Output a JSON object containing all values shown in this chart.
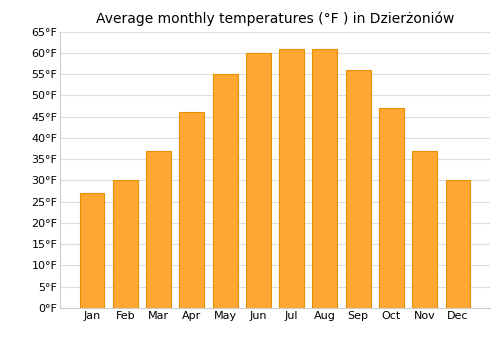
{
  "title": "Average monthly temperatures (°F ) in Dzierżoniów",
  "months": [
    "Jan",
    "Feb",
    "Mar",
    "Apr",
    "May",
    "Jun",
    "Jul",
    "Aug",
    "Sep",
    "Oct",
    "Nov",
    "Dec"
  ],
  "values": [
    27,
    30,
    37,
    46,
    55,
    60,
    61,
    61,
    56,
    47,
    37,
    30
  ],
  "bar_color": "#FFA733",
  "bar_edge_color": "#E89000",
  "ylim": [
    0,
    65
  ],
  "yticks": [
    0,
    5,
    10,
    15,
    20,
    25,
    30,
    35,
    40,
    45,
    50,
    55,
    60,
    65
  ],
  "ytick_labels": [
    "0°F",
    "5°F",
    "10°F",
    "15°F",
    "20°F",
    "25°F",
    "30°F",
    "35°F",
    "40°F",
    "45°F",
    "50°F",
    "55°F",
    "60°F",
    "65°F"
  ],
  "background_color": "#ffffff",
  "grid_color": "#dddddd",
  "title_fontsize": 10,
  "tick_fontsize": 8,
  "bar_width": 0.75
}
